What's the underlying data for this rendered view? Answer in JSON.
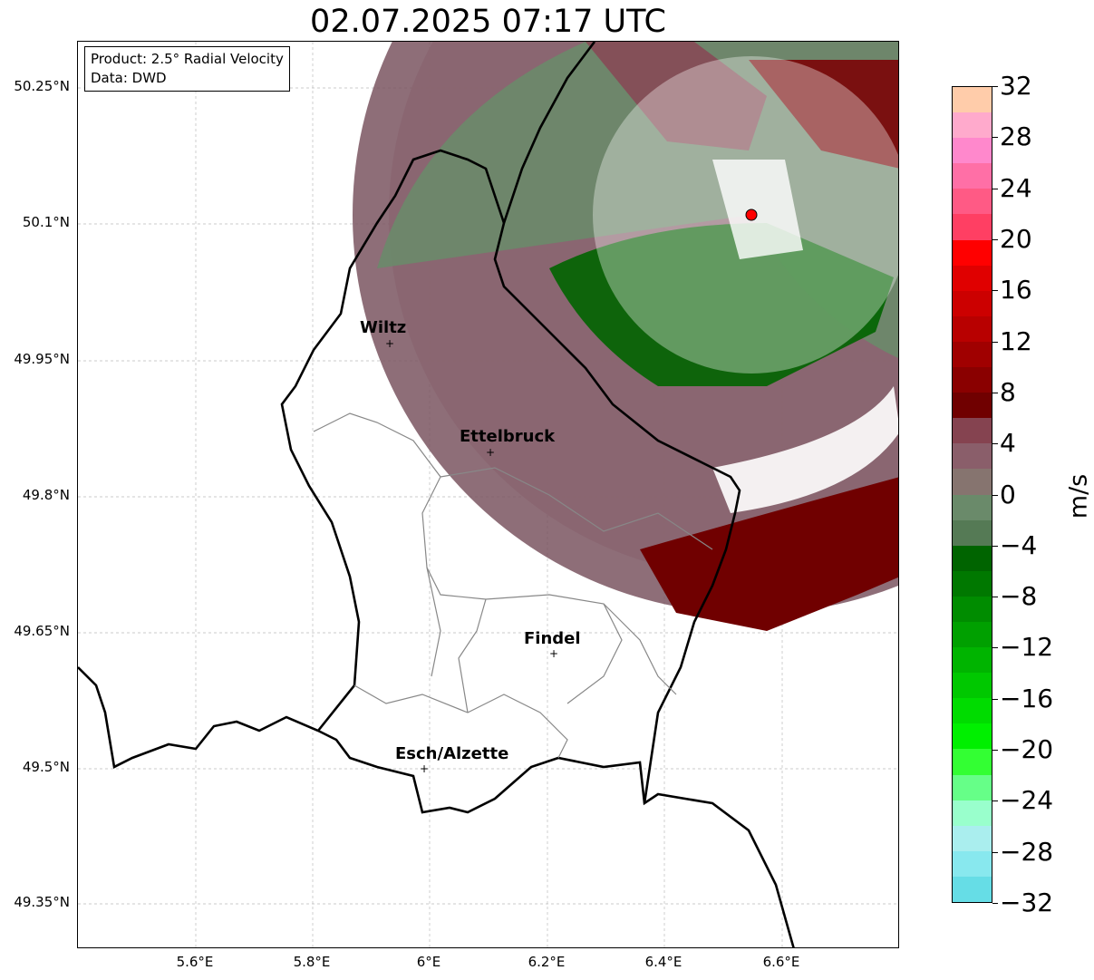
{
  "title": "02.07.2025 07:17 UTC",
  "info": {
    "product": "Product: 2.5° Radial Velocity",
    "source": "Data: DWD"
  },
  "lat_ticks": [
    "50.25°N",
    "50.1°N",
    "49.95°N",
    "49.8°N",
    "49.65°N",
    "49.5°N",
    "49.35°N"
  ],
  "lon_ticks": [
    "5.6°E",
    "5.8°E",
    "6°E",
    "6.2°E",
    "6.4°E",
    "6.6°E"
  ],
  "cities": [
    {
      "name": "Wiltz"
    },
    {
      "name": "Ettelbruck"
    },
    {
      "name": "Findel"
    },
    {
      "name": "Esch/Alzette"
    }
  ],
  "colorbar": {
    "label": "m/s",
    "ticks": [
      "32",
      "28",
      "24",
      "20",
      "16",
      "12",
      "8",
      "4",
      "0",
      "−4",
      "−8",
      "−12",
      "−16",
      "−20",
      "−24",
      "−28",
      "−32"
    ],
    "colors": [
      "#ffccaa",
      "#ffaacc",
      "#ff88cc",
      "#ff6fa6",
      "#ff5a85",
      "#ff3f63",
      "#ff0000",
      "#e00000",
      "#cc0000",
      "#b80000",
      "#a00000",
      "#8a0000",
      "#700000",
      "#854350",
      "#8a5e6a",
      "#86746f",
      "#6a8a6a",
      "#557a55",
      "#006400",
      "#007800",
      "#008c00",
      "#00a000",
      "#00b400",
      "#00c800",
      "#00dc00",
      "#00f000",
      "#33ff33",
      "#66ff88",
      "#99ffcc",
      "#aaeeee",
      "#88e8ee",
      "#66dde6"
    ],
    "tick_values": [
      32,
      28,
      24,
      20,
      16,
      12,
      8,
      4,
      0,
      -4,
      -8,
      -12,
      -16,
      -20,
      -24,
      -28,
      -32
    ]
  },
  "radar_site_color": "#ff0000"
}
